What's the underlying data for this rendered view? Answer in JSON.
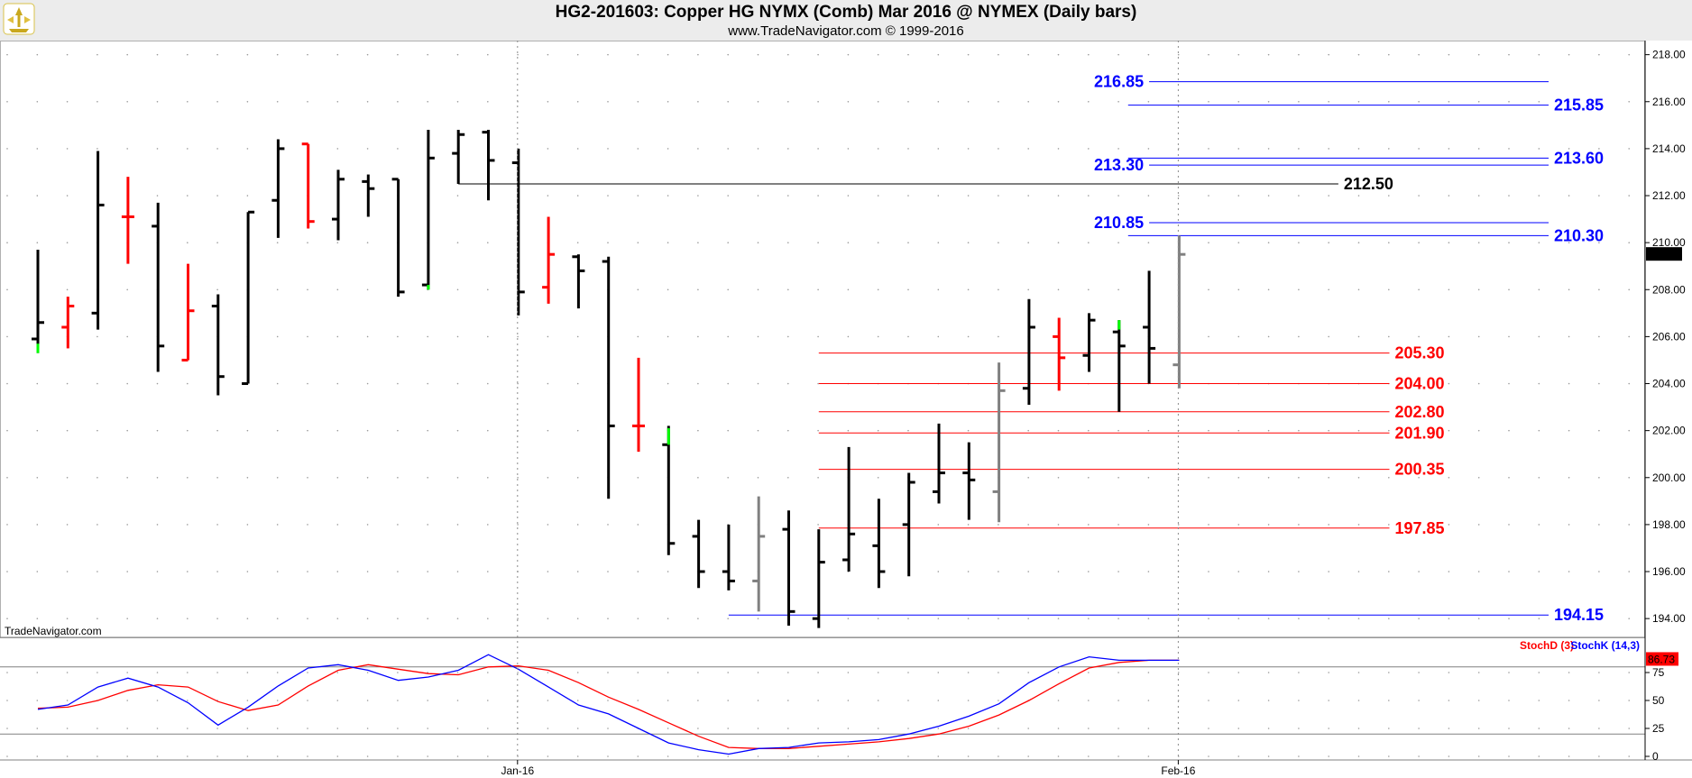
{
  "header": {
    "title": "HG2-201603:  Copper HG NYMX (Comb) Mar 2016 @ NYMEX  (Daily bars)",
    "subtitle": "www.TradeNavigator.com © 1999-2016"
  },
  "watermark": "TradeNavigator.com",
  "colors": {
    "up": "#000000",
    "down": "#ff0000",
    "gray": "#808080",
    "green": "#00ff00",
    "blue": "#0000ff",
    "red": "#ff0000"
  },
  "chart_data": [
    {
      "type": "bar",
      "subtype": "ohlc",
      "y_axis_ticks": [
        "218.00",
        "216.00",
        "214.00",
        "212.00",
        "210.00",
        "208.00",
        "206.00",
        "204.00",
        "202.00",
        "200.00",
        "198.00",
        "196.00",
        "194.00"
      ],
      "ylim": [
        193.2,
        218.6
      ],
      "x_labels": [
        {
          "index": 16,
          "label": "Jan-16"
        },
        {
          "index": 38,
          "label": "Feb-16"
        }
      ],
      "last_price": "209.50",
      "bars": [
        {
          "o": 205.9,
          "h": 209.7,
          "l": 205.3,
          "c": 206.6,
          "col": "up"
        },
        {
          "o": 206.4,
          "h": 207.7,
          "l": 205.5,
          "c": 207.3,
          "col": "down"
        },
        {
          "o": 207.0,
          "h": 213.9,
          "l": 206.3,
          "c": 211.6,
          "col": "up"
        },
        {
          "o": 211.1,
          "h": 212.8,
          "l": 209.1,
          "c": 211.1,
          "col": "down"
        },
        {
          "o": 210.7,
          "h": 211.7,
          "l": 204.5,
          "c": 205.6,
          "col": "up"
        },
        {
          "o": 205.0,
          "h": 209.1,
          "l": 205.0,
          "c": 207.1,
          "col": "down"
        },
        {
          "o": 207.3,
          "h": 207.8,
          "l": 203.5,
          "c": 204.3,
          "col": "up"
        },
        {
          "o": 204.0,
          "h": 211.3,
          "l": 204.0,
          "c": 211.3,
          "col": "up"
        },
        {
          "o": 211.8,
          "h": 214.4,
          "l": 210.2,
          "c": 214.0,
          "col": "up"
        },
        {
          "o": 214.2,
          "h": 214.2,
          "l": 210.6,
          "c": 210.9,
          "col": "down"
        },
        {
          "o": 211.0,
          "h": 213.1,
          "l": 210.1,
          "c": 212.7,
          "col": "up"
        },
        {
          "o": 212.6,
          "h": 212.9,
          "l": 211.1,
          "c": 212.3,
          "col": "up"
        },
        {
          "o": 212.7,
          "h": 212.7,
          "l": 207.7,
          "c": 207.9,
          "col": "up"
        },
        {
          "o": 208.2,
          "h": 214.8,
          "l": 208.0,
          "c": 213.6,
          "col": "up"
        },
        {
          "o": 213.8,
          "h": 214.8,
          "l": 212.5,
          "c": 214.6,
          "col": "up"
        },
        {
          "o": 214.7,
          "h": 214.8,
          "l": 211.8,
          "c": 213.5,
          "col": "up"
        },
        {
          "o": 213.4,
          "h": 214.0,
          "l": 206.9,
          "c": 207.9,
          "col": "up"
        },
        {
          "o": 208.1,
          "h": 211.1,
          "l": 207.4,
          "c": 209.5,
          "col": "down"
        },
        {
          "o": 209.4,
          "h": 209.5,
          "l": 207.2,
          "c": 208.8,
          "col": "up"
        },
        {
          "o": 209.2,
          "h": 209.4,
          "l": 199.1,
          "c": 202.2,
          "col": "up"
        },
        {
          "o": 202.2,
          "h": 205.1,
          "l": 201.1,
          "c": 202.2,
          "col": "down"
        },
        {
          "o": 201.4,
          "h": 202.2,
          "l": 196.7,
          "c": 197.2,
          "col": "up"
        },
        {
          "o": 197.5,
          "h": 198.2,
          "l": 195.3,
          "c": 196.0,
          "col": "up"
        },
        {
          "o": 196.0,
          "h": 198.0,
          "l": 195.2,
          "c": 195.6,
          "col": "up"
        },
        {
          "o": 195.6,
          "h": 199.2,
          "l": 194.3,
          "c": 197.5,
          "col": "gray"
        },
        {
          "o": 197.8,
          "h": 198.6,
          "l": 193.7,
          "c": 194.3,
          "col": "up"
        },
        {
          "o": 194.0,
          "h": 197.8,
          "l": 193.6,
          "c": 196.4,
          "col": "up"
        },
        {
          "o": 196.5,
          "h": 201.3,
          "l": 196.0,
          "c": 197.6,
          "col": "up"
        },
        {
          "o": 197.1,
          "h": 199.1,
          "l": 195.3,
          "c": 196.0,
          "col": "up"
        },
        {
          "o": 198.0,
          "h": 200.2,
          "l": 195.8,
          "c": 199.8,
          "col": "up"
        },
        {
          "o": 199.4,
          "h": 202.3,
          "l": 198.9,
          "c": 200.2,
          "col": "up"
        },
        {
          "o": 200.2,
          "h": 201.5,
          "l": 198.2,
          "c": 199.9,
          "col": "up"
        },
        {
          "o": 199.4,
          "h": 204.9,
          "l": 198.1,
          "c": 203.7,
          "col": "gray"
        },
        {
          "o": 203.8,
          "h": 207.6,
          "l": 203.1,
          "c": 206.4,
          "col": "up"
        },
        {
          "o": 206.0,
          "h": 206.8,
          "l": 203.7,
          "c": 205.1,
          "col": "down"
        },
        {
          "o": 205.2,
          "h": 207.0,
          "l": 204.5,
          "c": 206.7,
          "col": "up"
        },
        {
          "o": 206.2,
          "h": 206.7,
          "l": 202.8,
          "c": 205.6,
          "col": "up"
        },
        {
          "o": 206.4,
          "h": 208.8,
          "l": 204.0,
          "c": 205.5,
          "col": "up"
        },
        {
          "o": 204.8,
          "h": 210.3,
          "l": 203.8,
          "c": 209.5,
          "col": "gray"
        }
      ],
      "green_ticks": [
        {
          "index": 0,
          "from": 205.3,
          "to": 205.7
        },
        {
          "index": 13,
          "from": 208.0,
          "to": 208.2
        },
        {
          "index": 21,
          "from": 201.4,
          "to": 202.1
        },
        {
          "index": 36,
          "from": 206.3,
          "to": 206.7
        }
      ],
      "levels": [
        {
          "value": 216.85,
          "label": "216.85",
          "color": "blue",
          "from": 37.0,
          "to": 50.3,
          "label_side": "left"
        },
        {
          "value": 215.85,
          "label": "215.85",
          "color": "blue",
          "from": 36.3,
          "to": 50.3,
          "label_side": "right"
        },
        {
          "value": 213.6,
          "label": "213.60",
          "color": "blue",
          "from": 36.3,
          "to": 50.3,
          "label_side": "right"
        },
        {
          "value": 213.3,
          "label": "213.30",
          "color": "blue",
          "from": 37.0,
          "to": 50.3,
          "label_side": "left"
        },
        {
          "value": 212.5,
          "label": "212.50",
          "color": "black",
          "from": 14.0,
          "to": 43.3,
          "label_side": "right"
        },
        {
          "value": 210.85,
          "label": "210.85",
          "color": "blue",
          "from": 37.0,
          "to": 50.3,
          "label_side": "left"
        },
        {
          "value": 210.3,
          "label": "210.30",
          "color": "blue",
          "from": 36.3,
          "to": 50.3,
          "label_side": "right"
        },
        {
          "value": 205.3,
          "label": "205.30",
          "color": "red",
          "from": 26.0,
          "to": 45.0,
          "label_side": "right"
        },
        {
          "value": 204.0,
          "label": "204.00",
          "color": "red",
          "from": 26.0,
          "to": 45.0,
          "label_side": "right"
        },
        {
          "value": 202.8,
          "label": "202.80",
          "color": "red",
          "from": 26.0,
          "to": 45.0,
          "label_side": "right"
        },
        {
          "value": 201.9,
          "label": "201.90",
          "color": "red",
          "from": 26.0,
          "to": 45.0,
          "label_side": "right"
        },
        {
          "value": 200.35,
          "label": "200.35",
          "color": "red",
          "from": 26.0,
          "to": 45.0,
          "label_side": "right"
        },
        {
          "value": 197.85,
          "label": "197.85",
          "color": "red",
          "from": 26.0,
          "to": 45.0,
          "label_side": "right"
        },
        {
          "value": 194.15,
          "label": "194.15",
          "color": "blue",
          "from": 23.0,
          "to": 50.3,
          "label_side": "right"
        }
      ]
    },
    {
      "type": "line",
      "y_axis_ticks": [
        "75",
        "50",
        "25",
        "0"
      ],
      "ylim": [
        0,
        100
      ],
      "reference_lines": [
        80,
        20
      ],
      "last_value": "86.73",
      "series": [
        {
          "name": "StochD (3)",
          "color": "red",
          "values": [
            43,
            44,
            50,
            59,
            64,
            62,
            49,
            41,
            46,
            63,
            77,
            82,
            78,
            74,
            73,
            80,
            81,
            77,
            66,
            53,
            42,
            30,
            18,
            8,
            7,
            7,
            9,
            11,
            13,
            16,
            20,
            27,
            37,
            50,
            65,
            79,
            84,
            86,
            86
          ]
        },
        {
          "name": "StochK (14,3)",
          "color": "blue",
          "values": [
            42,
            46,
            62,
            70,
            62,
            48,
            28,
            44,
            63,
            79,
            82,
            77,
            68,
            71,
            77,
            91,
            78,
            62,
            46,
            38,
            25,
            12,
            6,
            2,
            7,
            8,
            12,
            13,
            15,
            20,
            27,
            36,
            47,
            66,
            80,
            89,
            86,
            86,
            86
          ]
        }
      ]
    }
  ]
}
